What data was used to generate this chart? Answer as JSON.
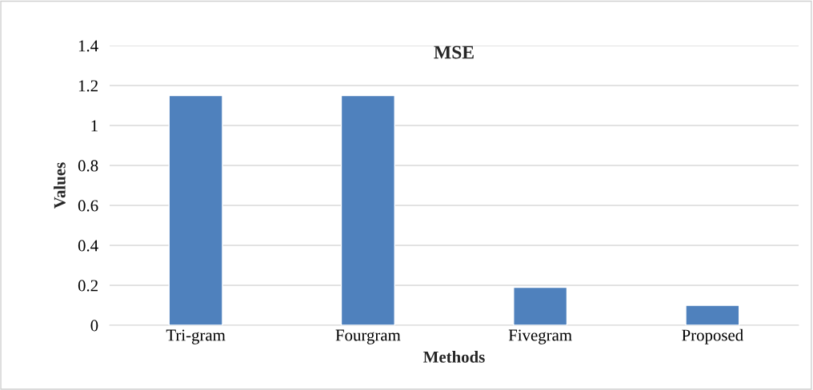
{
  "chart_data": {
    "type": "bar",
    "title": "MSE",
    "xlabel": "Methods",
    "ylabel": "Values",
    "categories": [
      "Tri-gram",
      "Fourgram",
      "Fivegram",
      "Proposed"
    ],
    "values": [
      1.15,
      1.15,
      0.19,
      0.1
    ],
    "color": "#4f81bd",
    "ylim": [
      0,
      1.4
    ],
    "yticks": [
      0,
      0.2,
      0.4,
      0.6,
      0.8,
      1,
      1.2,
      1.4
    ],
    "grid": "y",
    "legend": false
  }
}
